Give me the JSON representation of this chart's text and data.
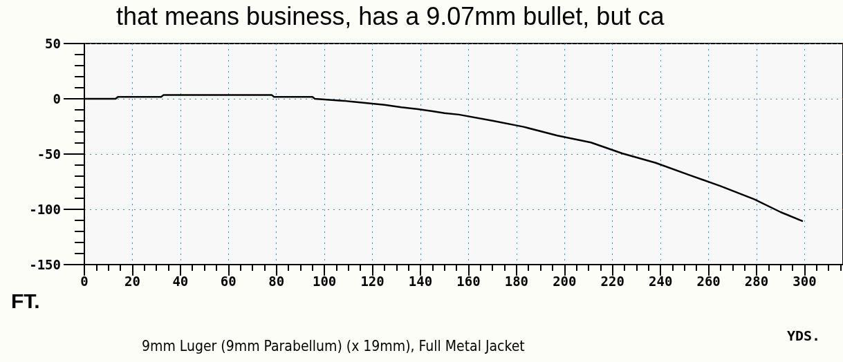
{
  "chart_data": {
    "type": "line",
    "title": "that means business, has a 9.07mm bullet, but ca",
    "xlabel": "YDS.",
    "ylabel": "FT.",
    "annotations": [
      "9mm Luger (9mm Parabellum) (x 19mm), Full Metal Jacket"
    ],
    "series": [
      {
        "color": "#000000",
        "x": [
          0,
          13,
          14,
          32,
          33,
          78,
          79,
          95,
          96,
          108,
          117,
          125,
          132,
          139,
          145,
          150,
          156,
          170,
          183,
          197,
          211,
          224,
          238,
          252,
          265,
          279,
          290,
          299
        ],
        "values": [
          0,
          0,
          1.7,
          1.7,
          3.5,
          3.5,
          1.7,
          1.7,
          0,
          -1.8,
          -3.8,
          -5.5,
          -7.7,
          -9.4,
          -11.2,
          -13,
          -14.3,
          -19.8,
          -25.4,
          -33.3,
          -39.5,
          -49.4,
          -58,
          -69,
          -79,
          -90.9,
          -102.5,
          -110.6
        ]
      }
    ],
    "xlim": [
      0,
      316
    ],
    "xticks": [
      0,
      {
        "value": 5,
        "label": null
      },
      {
        "value": 10,
        "label": null
      },
      {
        "value": 15,
        "label": null
      },
      20,
      {
        "value": 25,
        "label": null
      },
      {
        "value": 30,
        "label": null
      },
      {
        "value": 35,
        "label": null
      },
      40,
      {
        "value": 45,
        "label": null
      },
      {
        "value": 50,
        "label": null
      },
      {
        "value": 55,
        "label": null
      },
      60,
      {
        "value": 65,
        "label": null
      },
      {
        "value": 70,
        "label": null
      },
      {
        "value": 75,
        "label": null
      },
      80,
      {
        "value": 85,
        "label": null
      },
      {
        "value": 90,
        "label": null
      },
      {
        "value": 95,
        "label": null
      },
      100,
      {
        "value": 105,
        "label": null
      },
      {
        "value": 110,
        "label": null
      },
      {
        "value": 115,
        "label": null
      },
      120,
      {
        "value": 125,
        "label": null
      },
      {
        "value": 130,
        "label": null
      },
      {
        "value": 135,
        "label": null
      },
      140,
      {
        "value": 145,
        "label": null
      },
      {
        "value": 150,
        "label": null
      },
      {
        "value": 155,
        "label": null
      },
      160,
      {
        "value": 165,
        "label": null
      },
      {
        "value": 170,
        "label": null
      },
      {
        "value": 175,
        "label": null
      },
      180,
      {
        "value": 185,
        "label": null
      },
      {
        "value": 190,
        "label": null
      },
      {
        "value": 195,
        "label": null
      },
      200,
      {
        "value": 205,
        "label": null
      },
      {
        "value": 210,
        "label": null
      },
      {
        "value": 215,
        "label": null
      },
      220,
      {
        "value": 225,
        "label": null
      },
      {
        "value": 230,
        "label": null
      },
      {
        "value": 235,
        "label": null
      },
      240,
      {
        "value": 245,
        "label": null
      },
      {
        "value": 250,
        "label": null
      },
      {
        "value": 255,
        "label": null
      },
      260,
      {
        "value": 265,
        "label": null
      },
      {
        "value": 270,
        "label": null
      },
      {
        "value": 275,
        "label": null
      },
      280,
      {
        "value": 285,
        "label": null
      },
      {
        "value": 290,
        "label": null
      },
      {
        "value": 295,
        "label": null
      },
      300,
      {
        "value": 305,
        "label": null
      },
      {
        "value": 310,
        "label": null
      },
      {
        "value": 315,
        "label": null
      }
    ],
    "ylim": [
      -150,
      50
    ],
    "yticks": [
      50,
      {
        "value": 40,
        "label": null
      },
      {
        "value": 30,
        "label": null
      },
      {
        "value": 20,
        "label": null
      },
      {
        "value": 10,
        "label": null
      },
      0,
      {
        "value": -10,
        "label": null
      },
      {
        "value": -20,
        "label": null
      },
      {
        "value": -30,
        "label": null
      },
      {
        "value": -40,
        "label": null
      },
      -50,
      {
        "value": -60,
        "label": null
      },
      {
        "value": -70,
        "label": null
      },
      {
        "value": -80,
        "label": null
      },
      {
        "value": -90,
        "label": null
      },
      -100,
      {
        "value": -110,
        "label": null
      },
      {
        "value": -120,
        "label": null
      },
      {
        "value": -130,
        "label": null
      },
      {
        "value": -140,
        "label": null
      },
      -150
    ],
    "grid": true,
    "marker": "none",
    "line_style": "solid"
  }
}
